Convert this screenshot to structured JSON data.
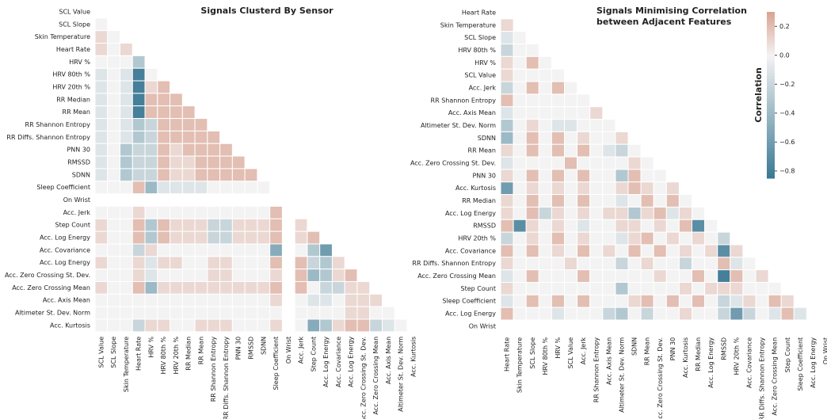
{
  "chart_data": [
    {
      "type": "heatmap",
      "title_lines": [
        "Signals Clusterd By Sensor"
      ],
      "labels": [
        "SCL Value",
        "SCL Slope",
        "Skin Temperature",
        "Heart Rate",
        "HRV %",
        "HRV 80th %",
        "HRV 20th %",
        "RR Median",
        "RR Mean",
        "RR Shannon Entropy",
        "RR Diffs. Shannon Entropy",
        "PNN 30",
        "RMSSD",
        "SDNN",
        "Sleep Coefficient",
        "On Wrist",
        "Acc. Jerk",
        "Step Count",
        "Acc. Log Energy",
        "Acc. Covariance",
        "Acc. Log Energy",
        "Acc. Zero Crossing St. Dev.",
        "Acc. Zero Crossing Mean",
        "Acc. Axis Mean",
        "Altimeter St. Dev. Norm",
        "Acc. Kurtosis"
      ],
      "values": [
        [],
        [
          0
        ],
        [
          0.1,
          0
        ],
        [
          0.1,
          0,
          0.1
        ],
        [
          0,
          0,
          0,
          -0.3
        ],
        [
          -0.1,
          0,
          -0.1,
          -0.8,
          0
        ],
        [
          -0.1,
          0,
          -0.1,
          -0.8,
          0.1,
          0.2
        ],
        [
          -0.1,
          0,
          -0.1,
          -0.8,
          0.2,
          0.2,
          0.2
        ],
        [
          -0.1,
          0,
          -0.1,
          -0.8,
          0.2,
          0.2,
          0.2,
          0.2
        ],
        [
          -0.1,
          0,
          -0.1,
          -0.3,
          -0.2,
          0.2,
          0.2,
          0.2,
          0.2
        ],
        [
          -0.1,
          0,
          -0.1,
          -0.3,
          -0.2,
          0.2,
          0.2,
          0.2,
          0.2,
          0.2
        ],
        [
          -0.1,
          0,
          -0.3,
          -0.2,
          -0.2,
          0.2,
          0.1,
          0.2,
          0.2,
          0.2,
          0.2
        ],
        [
          -0.1,
          0,
          -0.3,
          -0.2,
          -0.2,
          0.2,
          0.1,
          0.1,
          0.2,
          0.2,
          0.2,
          0.2
        ],
        [
          -0.1,
          0,
          -0.3,
          -0.2,
          -0.2,
          0.2,
          0.1,
          0.1,
          0.2,
          0.2,
          0.2,
          0.2,
          0.2
        ],
        [
          0,
          0,
          0,
          0.2,
          -0.4,
          -0.1,
          -0.1,
          -0.1,
          -0.1,
          0,
          0,
          0,
          0,
          0
        ],
        [
          null,
          null,
          null,
          null,
          null,
          null,
          null,
          null,
          null,
          null,
          null,
          null,
          null,
          null,
          null
        ],
        [
          0,
          0,
          0,
          0.1,
          0,
          0,
          0,
          0,
          0,
          0,
          0,
          0,
          0,
          0,
          0.2,
          null
        ],
        [
          0.1,
          0,
          0,
          0.2,
          -0.3,
          0.2,
          0.1,
          0.1,
          0.1,
          -0.2,
          -0.2,
          0.1,
          0.1,
          0.1,
          0.2,
          null,
          0.1
        ],
        [
          0.1,
          0,
          0,
          0.2,
          -0.3,
          0.2,
          0.1,
          0.1,
          0.1,
          -0.2,
          -0.2,
          0.1,
          0.1,
          0.1,
          0.2,
          null,
          0.1,
          0.2
        ],
        [
          0,
          0,
          0,
          -0.2,
          0.1,
          0,
          0,
          0,
          0,
          0,
          0,
          0,
          0,
          0,
          -0.5,
          null,
          0,
          -0.3,
          -0.6
        ],
        [
          0.1,
          0,
          0,
          0.1,
          -0.1,
          0.1,
          0.1,
          0,
          0,
          0.1,
          0.1,
          0,
          0,
          0,
          0.2,
          null,
          0.2,
          -0.2,
          -0.3,
          0.1
        ],
        [
          0,
          0,
          0,
          0.1,
          -0.1,
          0,
          0,
          0,
          0,
          0.1,
          0.1,
          0,
          0,
          0,
          0.1,
          null,
          0.2,
          -0.4,
          -0.3,
          0.1,
          0.2
        ],
        [
          0.1,
          0,
          0,
          0.2,
          -0.4,
          0.1,
          0.1,
          0.1,
          0.1,
          0.1,
          0.1,
          0.1,
          0.1,
          0.1,
          0.2,
          null,
          0.2,
          0,
          -0.2,
          -0.2,
          0.1,
          0.1
        ],
        [
          0,
          0,
          0,
          0,
          0,
          0,
          0,
          0,
          0,
          0,
          0,
          0,
          0,
          0,
          0.1,
          null,
          0,
          -0.1,
          -0.1,
          0,
          0.1,
          0.1,
          0.1
        ],
        [
          0,
          0,
          0,
          0,
          0,
          0,
          0,
          0,
          0,
          0,
          0,
          0,
          0,
          0,
          0,
          null,
          0,
          0,
          0,
          0,
          0.1,
          0.1,
          0,
          0
        ],
        [
          0,
          0,
          0,
          -0.2,
          0.1,
          0.1,
          0,
          0,
          0.1,
          0.1,
          0.1,
          0,
          0,
          0,
          0.1,
          null,
          0,
          -0.5,
          -0.3,
          0.1,
          0.2,
          0.2,
          -0.2,
          -0.1,
          0
        ]
      ]
    },
    {
      "type": "heatmap",
      "title_lines": [
        "Signals Minimising Correlation",
        "between Adjacent Features"
      ],
      "labels": [
        "Heart Rate",
        "Skin Temperature",
        "SCL Slope",
        "HRV 80th %",
        "HRV %",
        "SCL Value",
        "Acc. Jerk",
        "RR Shannon Entropy",
        "Acc. Axis Mean",
        "Altimeter St. Dev. Norm",
        "SDNN",
        "RR Mean",
        "Acc. Zero Crossing St. Dev.",
        "PNN 30",
        "Acc. Kurtosis",
        "RR Median",
        "Acc. Log Energy",
        "RMSSD",
        "HRV 20th %",
        "Acc. Covariance",
        "RR Diffs. Shannon Entropy",
        "Acc. Zero Crossing Mean",
        "Step Count",
        "Sleep Coefficient",
        "Acc. Log Energy",
        "On Wrist"
      ],
      "values": [
        [],
        [
          0.1
        ],
        [
          -0.1,
          0
        ],
        [
          -0.2,
          0,
          0
        ],
        [
          0.1,
          0,
          0.2,
          0
        ],
        [
          0.1,
          0,
          0,
          0,
          0
        ],
        [
          -0.2,
          0,
          0.2,
          0,
          0.2,
          0
        ],
        [
          0.2,
          0,
          0,
          0,
          0,
          0,
          0
        ],
        [
          -0.1,
          0,
          0,
          0,
          0,
          0,
          0,
          0.1
        ],
        [
          -0.3,
          0,
          0.1,
          0,
          -0.1,
          -0.1,
          0,
          0,
          0
        ],
        [
          -0.4,
          0,
          0.2,
          0,
          0.2,
          0,
          0.1,
          0,
          0,
          0.1
        ],
        [
          0.1,
          0,
          0.2,
          0,
          0.2,
          0,
          0.2,
          0,
          -0.1,
          -0.2,
          0
        ],
        [
          -0.1,
          0,
          0,
          0,
          0,
          0.2,
          0,
          0,
          0,
          0,
          0.1,
          0
        ],
        [
          0.1,
          0,
          0.2,
          0,
          0.2,
          0,
          0.2,
          0,
          0,
          -0.3,
          0.2,
          0,
          0
        ],
        [
          -0.6,
          0,
          0.1,
          0,
          0.1,
          0,
          0.1,
          0,
          0,
          0.1,
          0.2,
          0.1,
          0,
          0.1
        ],
        [
          0.1,
          0,
          0.2,
          0,
          0.2,
          0,
          0.2,
          0,
          0,
          -0.1,
          0,
          0.2,
          0,
          0.2,
          0
        ],
        [
          0.1,
          0,
          0.2,
          -0.2,
          0.1,
          0,
          0.1,
          0,
          0.1,
          0.1,
          -0.3,
          0.1,
          0.2,
          -0.1,
          0.1,
          0
        ],
        [
          0.2,
          -0.7,
          0.1,
          0,
          0.1,
          0,
          -0.1,
          0,
          0,
          0.1,
          0.1,
          0,
          0.1,
          0,
          0.2,
          -0.7,
          0
        ],
        [
          -0.2,
          0,
          0.1,
          0,
          0.2,
          0,
          0.1,
          0,
          0,
          -0.1,
          0.1,
          0.2,
          0,
          0.1,
          0,
          0.1,
          0,
          -0.2
        ],
        [
          0.2,
          0,
          0.2,
          0,
          0.1,
          0,
          0.2,
          0,
          0.1,
          0,
          0.2,
          0,
          0.2,
          0,
          0.1,
          0,
          0.1,
          -0.7,
          0.1
        ],
        [
          0.1,
          0,
          0,
          0,
          0,
          0.1,
          0,
          0,
          0,
          -0.2,
          0,
          0.1,
          0,
          0,
          -0.2,
          0,
          0,
          0.2,
          -0.1,
          0
        ],
        [
          -0.1,
          0,
          0.2,
          0,
          0,
          0,
          0.2,
          0,
          0,
          0,
          0,
          0,
          0.1,
          0,
          0,
          0.2,
          0,
          -0.8,
          0.2,
          0,
          0.1
        ],
        [
          0.1,
          0,
          0,
          0,
          0,
          0,
          0,
          0,
          0,
          -0.3,
          0,
          0,
          0,
          0,
          0.1,
          0,
          0.1,
          0.1,
          0.1,
          0,
          0,
          0
        ],
        [
          -0.1,
          0,
          0.2,
          0,
          0.2,
          0,
          0.2,
          0,
          0,
          0,
          0.1,
          0.2,
          0,
          0.2,
          0,
          0.2,
          0,
          -0.2,
          -0.1,
          0.1,
          0,
          0.2,
          0.1
        ],
        [
          0.2,
          0,
          0,
          0,
          -0.1,
          0,
          0,
          0,
          -0.2,
          -0.3,
          0,
          -0.2,
          0,
          0,
          0.1,
          0,
          0,
          -0.2,
          -0.6,
          -0.2,
          0,
          -0.1,
          0.2,
          -0.1
        ],
        [
          null,
          null,
          null,
          null,
          null,
          null,
          null,
          null,
          null,
          null,
          null,
          null,
          null,
          null,
          null,
          null,
          null,
          null,
          null,
          null,
          null,
          null,
          null,
          null,
          null
        ]
      ],
      "colorbar": {
        "label": "Correlation",
        "lim": [
          -0.85,
          0.3
        ],
        "ticks": [
          {
            "value": 0.2,
            "label": "0.2"
          },
          {
            "value": 0,
            "label": "0.0"
          },
          {
            "value": -0.2,
            "label": "−0.2"
          },
          {
            "value": -0.4,
            "label": "−0.4"
          },
          {
            "value": -0.6,
            "label": "−0.6"
          },
          {
            "value": -0.8,
            "label": "−0.8"
          }
        ]
      },
      "colors": {
        "low": "#3a7893",
        "mid": "#f4f3f3",
        "high": "#daa393"
      }
    }
  ]
}
